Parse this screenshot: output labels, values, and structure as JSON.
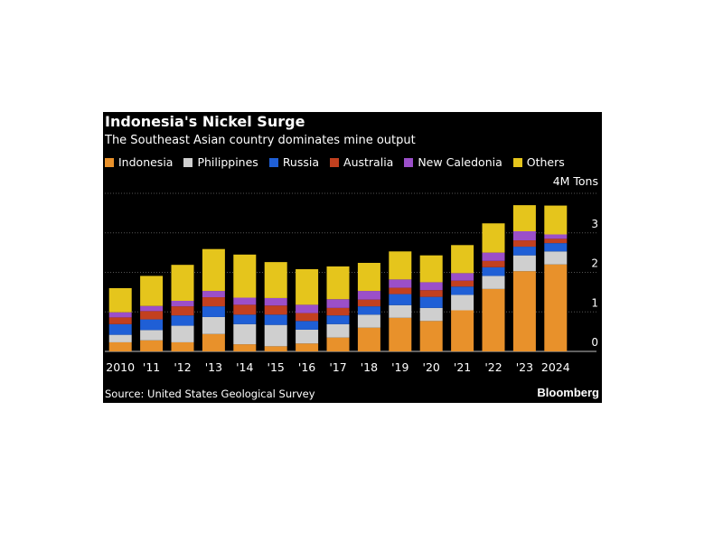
{
  "title": "Indonesia's Nickel Surge",
  "subtitle": "The Southeast Asian country dominates mine output",
  "source": "Source: United States Geological Survey",
  "brand": "Bloomberg",
  "colors": {
    "Indonesia": "#e8912b",
    "Philippines": "#cfcfcf",
    "Russia": "#1f5fd6",
    "Australia": "#c2401f",
    "New Caledonia": "#9b4fc9",
    "Others": "#e5c51c",
    "background": "#000000",
    "grid": "#555555"
  },
  "chart_data": {
    "type": "bar",
    "stacked": true,
    "categories": [
      "2010",
      "'11",
      "'12",
      "'13",
      "'14",
      "'15",
      "'16",
      "'17",
      "'18",
      "'19",
      "'20",
      "'21",
      "'22",
      "'23",
      "2024"
    ],
    "unit_label": "4M Tons",
    "yticks": [
      "0",
      "1",
      "2",
      "3"
    ],
    "ylim": [
      0,
      4
    ],
    "grid": true,
    "legend_position": "top",
    "series": [
      {
        "name": "Indonesia",
        "values": [
          0.23,
          0.28,
          0.23,
          0.44,
          0.18,
          0.13,
          0.2,
          0.35,
          0.6,
          0.85,
          0.77,
          1.04,
          1.58,
          2.03,
          2.2
        ]
      },
      {
        "name": "Philippines",
        "values": [
          0.19,
          0.26,
          0.42,
          0.43,
          0.51,
          0.54,
          0.35,
          0.34,
          0.33,
          0.32,
          0.33,
          0.39,
          0.33,
          0.4,
          0.33
        ]
      },
      {
        "name": "Russia",
        "values": [
          0.27,
          0.27,
          0.26,
          0.27,
          0.24,
          0.26,
          0.22,
          0.22,
          0.21,
          0.28,
          0.28,
          0.21,
          0.22,
          0.22,
          0.21
        ]
      },
      {
        "name": "Australia",
        "values": [
          0.17,
          0.21,
          0.23,
          0.23,
          0.25,
          0.23,
          0.2,
          0.19,
          0.17,
          0.16,
          0.17,
          0.15,
          0.16,
          0.16,
          0.11
        ]
      },
      {
        "name": "New Caledonia",
        "values": [
          0.13,
          0.13,
          0.14,
          0.16,
          0.18,
          0.19,
          0.21,
          0.22,
          0.22,
          0.21,
          0.2,
          0.19,
          0.21,
          0.23,
          0.11
        ]
      },
      {
        "name": "Others",
        "values": [
          0.61,
          0.76,
          0.91,
          1.06,
          1.09,
          0.91,
          0.9,
          0.83,
          0.71,
          0.71,
          0.68,
          0.71,
          0.74,
          0.66,
          0.73
        ]
      }
    ]
  }
}
